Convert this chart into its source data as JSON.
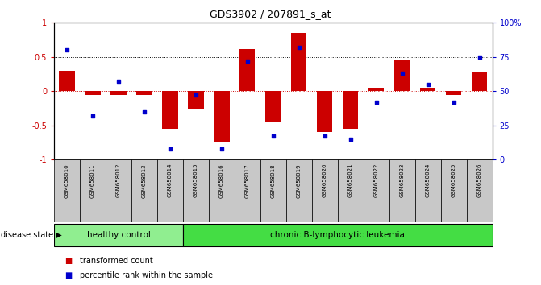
{
  "title": "GDS3902 / 207891_s_at",
  "samples": [
    "GSM658010",
    "GSM658011",
    "GSM658012",
    "GSM658013",
    "GSM658014",
    "GSM658015",
    "GSM658016",
    "GSM658017",
    "GSM658018",
    "GSM658019",
    "GSM658020",
    "GSM658021",
    "GSM658022",
    "GSM658023",
    "GSM658024",
    "GSM658025",
    "GSM658026"
  ],
  "transformed_count": [
    0.3,
    -0.05,
    -0.05,
    -0.05,
    -0.55,
    -0.25,
    -0.75,
    0.62,
    -0.45,
    0.85,
    -0.6,
    -0.55,
    0.05,
    0.45,
    0.05,
    -0.05,
    0.27
  ],
  "percentile_rank": [
    80,
    32,
    57,
    35,
    8,
    47,
    8,
    72,
    17,
    82,
    17,
    15,
    42,
    63,
    55,
    42,
    75
  ],
  "healthy_control_count": 5,
  "group1_label": "healthy control",
  "group2_label": "chronic B-lymphocytic leukemia",
  "disease_state_label": "disease state",
  "legend_red": "transformed count",
  "legend_blue": "percentile rank within the sample",
  "bar_color": "#CC0000",
  "dot_color": "#0000CC",
  "group1_color": "#90EE90",
  "group2_color": "#44DD44",
  "ylim_left": [
    -1,
    1
  ],
  "ylim_right": [
    0,
    100
  ],
  "yticks_left": [
    -1,
    -0.5,
    0,
    0.5,
    1
  ],
  "yticks_right": [
    0,
    25,
    50,
    75,
    100
  ],
  "ytick_labels_left": [
    "-1",
    "-0.5",
    "0",
    "0.5",
    "1"
  ],
  "ytick_labels_right": [
    "0",
    "25",
    "50",
    "75",
    "100%"
  ],
  "hline_dotted": [
    0.5,
    -0.5
  ],
  "bg_color": "#FFFFFF"
}
